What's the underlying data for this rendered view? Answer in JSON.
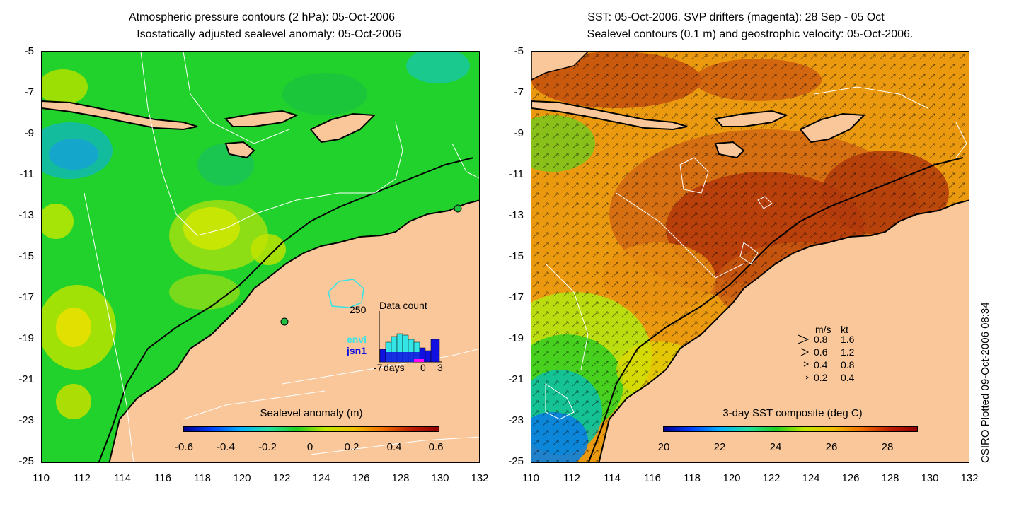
{
  "left_panel": {
    "title_line1": "Atmospheric pressure contours (2 hPa): 05-Oct-2006",
    "title_line2": "Isostatically adjusted sealevel anomaly: 05-Oct-2006",
    "colorbar": {
      "title": "Sealevel anomaly (m)",
      "ticks": [
        "-0.6",
        "-0.4",
        "-0.2",
        "0",
        "0.2",
        "0.4",
        "0.6"
      ]
    },
    "inset": {
      "title": "Data count",
      "label_250": "250",
      "series_envi": "envi",
      "series_jsn1": "jsn1",
      "x_label_start": "-7",
      "x_label_days": "days",
      "x_label_zero": "0",
      "x_label_end": "3",
      "envi_color": "#33e5e5",
      "jsn1_color": "#1010e0"
    }
  },
  "right_panel": {
    "title_line1": "SST: 05-Oct-2006. SVP drifters (magenta): 28 Sep - 05 Oct",
    "title_line2": "Sealevel contours (0.1 m) and geostrophic velocity: 05-Oct-2006.",
    "colorbar": {
      "title": "3-day SST composite (deg C)",
      "ticks": [
        "20",
        "22",
        "24",
        "26",
        "28"
      ]
    },
    "velocity_legend": {
      "header_ms": "m/s",
      "header_kt": "kt",
      "rows": [
        {
          "ms": "0.8",
          "kt": "1.6"
        },
        {
          "ms": "0.6",
          "kt": "1.2"
        },
        {
          "ms": "0.4",
          "kt": "0.8"
        },
        {
          "ms": "0.2",
          "kt": "0.4"
        }
      ]
    }
  },
  "axes": {
    "y_ticks": [
      "-5",
      "-7",
      "-9",
      "-11",
      "-13",
      "-15",
      "-17",
      "-19",
      "-21",
      "-23",
      "-25"
    ],
    "x_ticks": [
      "110",
      "112",
      "114",
      "116",
      "118",
      "120",
      "122",
      "124",
      "126",
      "128",
      "130",
      "132"
    ]
  },
  "credit": "CSIRO Plotted 09-Oct-2006 08:34",
  "colors": {
    "land": "#f9c79a",
    "ocean_green": "#1fce2a",
    "sst_warm": "#e06a10",
    "sst_hot": "#b03208"
  }
}
